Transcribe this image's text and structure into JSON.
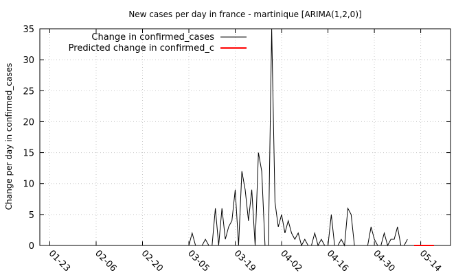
{
  "chart_data": {
    "type": "line",
    "title": "New cases per day in france - martinique [ARIMA(1,2,0)]",
    "xlabel": "",
    "ylabel": "Change per day in confirmed_cases",
    "x_ticks": [
      "01-23",
      "02-06",
      "02-20",
      "03-05",
      "03-19",
      "04-02",
      "04-16",
      "04-30",
      "05-14"
    ],
    "y_ticks": [
      0,
      5,
      10,
      15,
      20,
      25,
      30,
      35
    ],
    "xlim": [
      "01-20",
      "05-23"
    ],
    "ylim": [
      0,
      35
    ],
    "grid": true,
    "legend_position": "top-left",
    "series": [
      {
        "name": "Change in confirmed_cases",
        "color": "#000000",
        "dates": [
          "01-22",
          "03-05",
          "03-06",
          "03-07",
          "03-08",
          "03-09",
          "03-10",
          "03-11",
          "03-12",
          "03-13",
          "03-14",
          "03-15",
          "03-16",
          "03-17",
          "03-18",
          "03-19",
          "03-20",
          "03-21",
          "03-22",
          "03-23",
          "03-24",
          "03-25",
          "03-26",
          "03-27",
          "03-28",
          "03-29",
          "03-30",
          "03-31",
          "04-01",
          "04-02",
          "04-03",
          "04-04",
          "04-05",
          "04-06",
          "04-07",
          "04-08",
          "04-09",
          "04-10",
          "04-11",
          "04-12",
          "04-13",
          "04-14",
          "04-15",
          "04-16",
          "04-17",
          "04-18",
          "04-19",
          "04-20",
          "04-21",
          "04-22",
          "04-23",
          "04-24",
          "04-25",
          "04-26",
          "04-27",
          "04-28",
          "04-29",
          "04-30",
          "05-01",
          "05-02",
          "05-03",
          "05-04",
          "05-05",
          "05-06",
          "05-07",
          "05-08",
          "05-09",
          "05-10"
        ],
        "values": [
          0,
          0,
          2,
          0,
          0,
          0,
          1,
          0,
          0,
          6,
          0,
          6,
          1,
          3,
          4,
          9,
          0,
          12,
          9,
          4,
          9,
          0,
          15,
          12,
          0,
          0,
          35,
          7,
          3,
          5,
          2,
          4,
          2,
          1,
          2,
          0,
          1,
          0,
          0,
          2,
          0,
          1,
          0,
          0,
          5,
          0,
          0,
          1,
          0,
          6,
          5,
          0,
          0,
          0,
          0,
          0,
          3,
          1,
          0,
          0,
          2,
          0,
          1,
          1,
          3,
          0,
          0,
          1
        ]
      },
      {
        "name": "Predicted change in confirmed_c",
        "color": "#ff0000",
        "dates": [
          "05-12",
          "05-18"
        ],
        "values": [
          0,
          0
        ]
      }
    ]
  }
}
